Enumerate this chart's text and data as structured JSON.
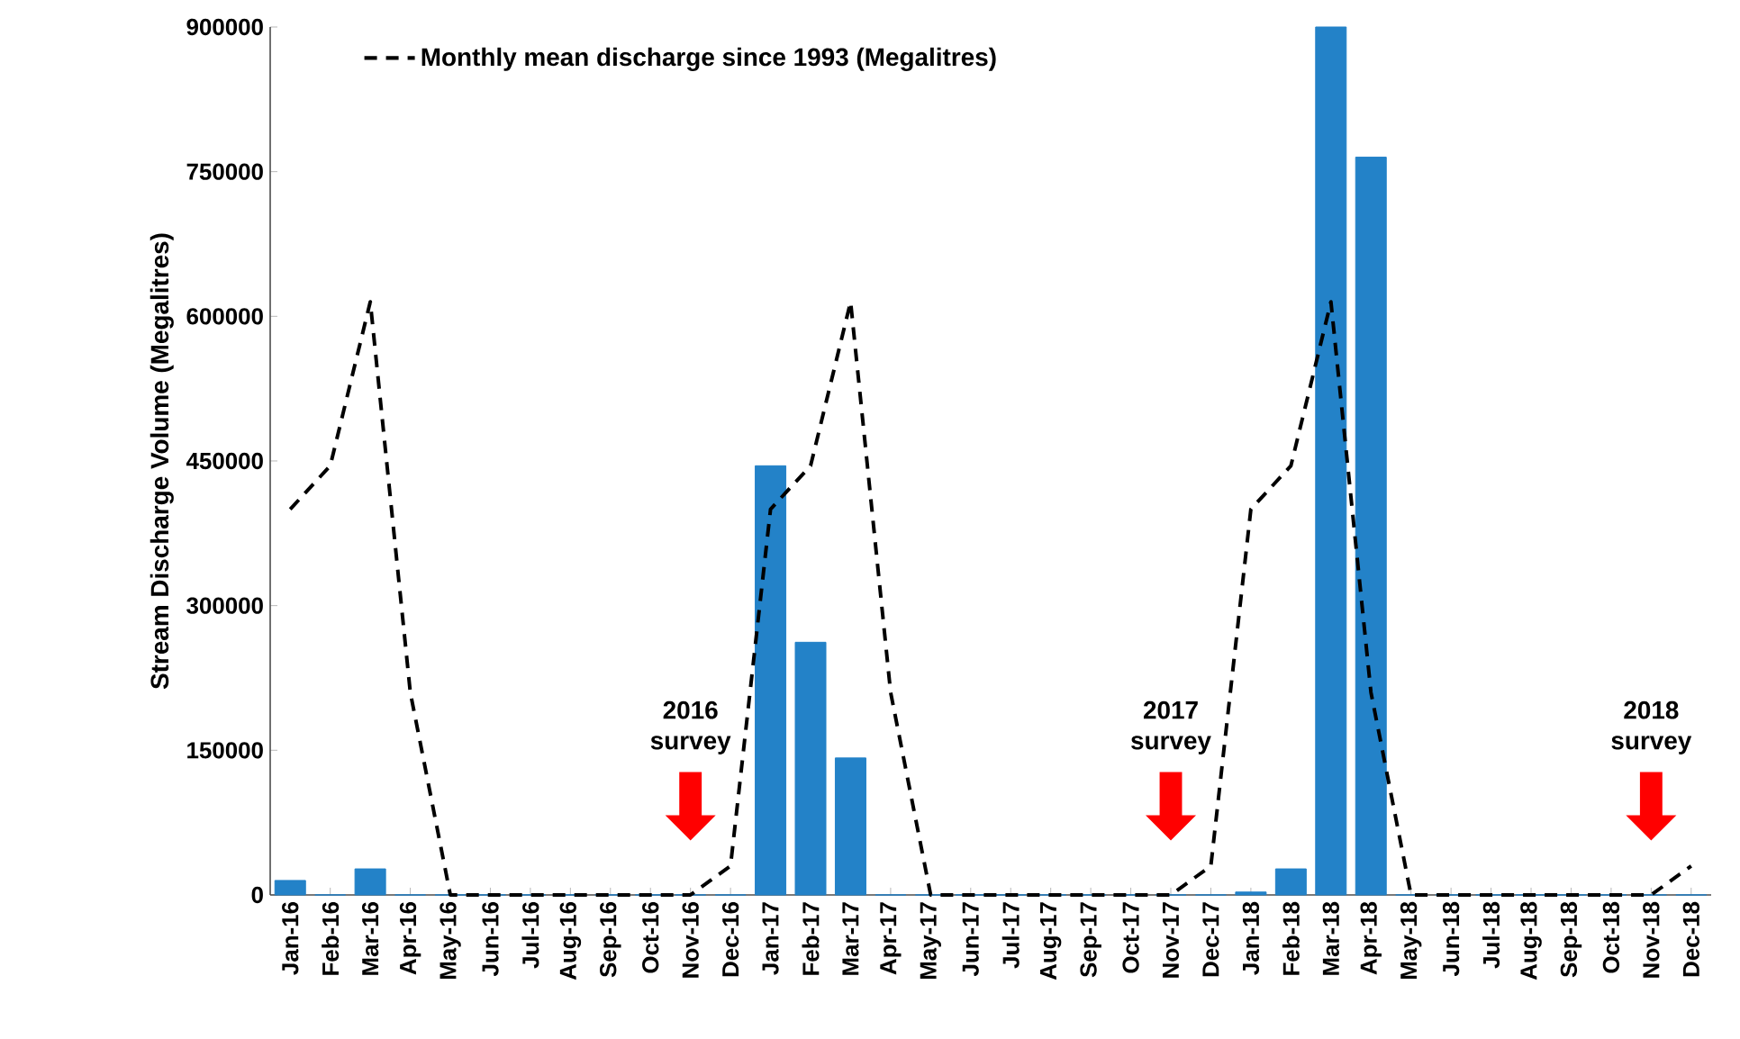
{
  "chart_data": {
    "type": "bar",
    "ylabel": "Stream Discharge Volume (Megalitres)",
    "categories": [
      "Jan-16",
      "Feb-16",
      "Mar-16",
      "Apr-16",
      "May-16",
      "Jun-16",
      "Jul-16",
      "Aug-16",
      "Sep-16",
      "Oct-16",
      "Nov-16",
      "Dec-16",
      "Jan-17",
      "Feb-17",
      "Mar-17",
      "Apr-17",
      "May-17",
      "Jun-17",
      "Jul-17",
      "Aug-17",
      "Sep-17",
      "Oct-17",
      "Nov-17",
      "Dec-17",
      "Jan-18",
      "Feb-18",
      "Mar-18",
      "Apr-18",
      "May-18",
      "Jun-18",
      "Jul-18",
      "Aug-18",
      "Sep-18",
      "Oct-18",
      "Nov-18",
      "Dec-18"
    ],
    "series": [
      {
        "color": "#2382c8",
        "values": [
          15000,
          0,
          27000,
          0,
          0,
          0,
          0,
          0,
          0,
          0,
          0,
          0,
          445000,
          262000,
          142000,
          0,
          0,
          0,
          0,
          0,
          0,
          0,
          0,
          0,
          3000,
          27000,
          900000,
          765000,
          0,
          0,
          0,
          0,
          0,
          0,
          0,
          0
        ]
      },
      {
        "type": "line",
        "name": "Monthly mean discharge since 1993  (Megalitres)",
        "color": "#000000",
        "line_style": "dashed",
        "values": [
          400000,
          445000,
          615000,
          210000,
          0,
          0,
          0,
          0,
          0,
          0,
          0,
          30000,
          400000,
          445000,
          615000,
          210000,
          0,
          0,
          0,
          0,
          0,
          0,
          0,
          30000,
          400000,
          445000,
          615000,
          210000,
          0,
          0,
          0,
          0,
          0,
          0,
          0,
          30000
        ]
      }
    ],
    "ylim": [
      0,
      900000
    ],
    "yticks": [
      0,
      150000,
      300000,
      450000,
      600000,
      750000,
      900000
    ],
    "legend": "top left",
    "annotations": [
      "2016 survey",
      "2017 survey",
      "2018 survey"
    ]
  }
}
